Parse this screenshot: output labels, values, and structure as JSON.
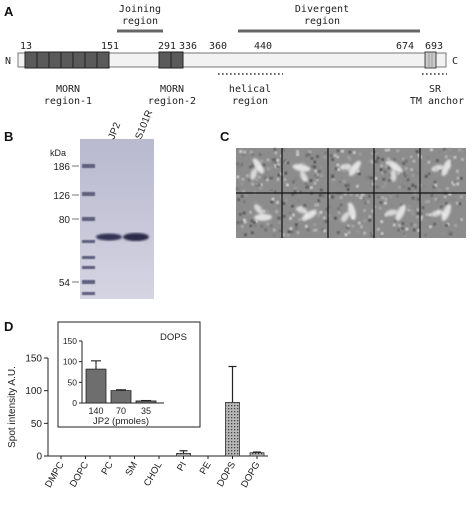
{
  "panels": {
    "A": {
      "letter": "A",
      "region_labels": {
        "joining_line1": "Joining",
        "joining_line2": "region",
        "divergent_line1": "Divergent",
        "divergent_line2": "region"
      },
      "terminal_n": "N",
      "terminal_c": "C",
      "positions": [
        "13",
        "151",
        "291",
        "336",
        "360",
        "440",
        "674",
        "693"
      ],
      "domain_labels": {
        "morn1_line1": "MORN",
        "morn1_line2": "region-1",
        "morn2_line1": "MORN",
        "morn2_line2": "region-2",
        "helical_line1": "helical",
        "helical_line2": "region",
        "sr_line1": "SR",
        "sr_line2": "TM anchor"
      }
    },
    "B": {
      "letter": "B",
      "kda_label": "kDa",
      "lane_labels": [
        "JP2",
        "S101R"
      ],
      "markers": [
        "186",
        "126",
        "80",
        "54"
      ]
    },
    "C": {
      "letter": "C"
    },
    "D": {
      "letter": "D",
      "chart_data": [
        {
          "type": "bar",
          "ylabel": "Spot intensity A.U.",
          "ylim": [
            0,
            150
          ],
          "yticks": [
            "0",
            "50",
            "100",
            "150"
          ],
          "categories": [
            "DMPC",
            "DOPC",
            "PC",
            "SM",
            "CHOL",
            "PI",
            "PE",
            "DOPS",
            "DOPG"
          ],
          "values": [
            0,
            0,
            0,
            0,
            0,
            4,
            0,
            82,
            5
          ],
          "errors": [
            0,
            0,
            0,
            0,
            0,
            4,
            0,
            55,
            1
          ]
        },
        {
          "type": "bar",
          "title": "DOPS",
          "xlabel": "JP2 (pmoles)",
          "ylim": [
            0,
            150
          ],
          "yticks": [
            "0",
            "50",
            "100",
            "150"
          ],
          "categories": [
            "140",
            "70",
            "35"
          ],
          "values": [
            82,
            30,
            5
          ],
          "errors": [
            20,
            2,
            1
          ]
        }
      ]
    }
  },
  "colors": {
    "morn_fill": "#5a5a5a",
    "bar_dark": "#555555",
    "bar_light": "#888888",
    "gel_bg": "#c8c8d8",
    "em_bg": "#8a8a8a"
  }
}
